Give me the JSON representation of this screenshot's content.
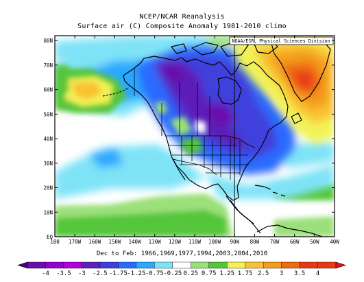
{
  "header": {
    "line1": "NCEP/NCAR Reanalysis",
    "line2": "Surface air (C) Composite Anomaly 1981-2010 climo"
  },
  "credit": "NOAA/ESRL Physical Sciences Division",
  "map": {
    "projection": "equirectangular",
    "lon_range": [
      -180,
      -40
    ],
    "lat_range": [
      0,
      82
    ],
    "lat_labels": [
      "80N",
      "70N",
      "60N",
      "50N",
      "40N",
      "30N",
      "20N",
      "10N",
      "EQ"
    ],
    "lon_labels": [
      "180",
      "170W",
      "160W",
      "150W",
      "140W",
      "130W",
      "120W",
      "110W",
      "100W",
      "90W",
      "80W",
      "70W",
      "60W",
      "50W",
      "40W"
    ],
    "variable": "Surface air temperature anomaly",
    "units": "C",
    "features": [
      "North America coastlines",
      "US state borders",
      "Canadian provinces",
      "Alaska",
      "Greenland",
      "Central America",
      "Caribbean"
    ]
  },
  "footer": {
    "period": "Dec to Feb: 1966,1969,1977,1994,2003,2004,2010"
  },
  "colorbar": {
    "labels": [
      "-4",
      "-3.5",
      "-3",
      "-2.5",
      "-1.75",
      "-1.25",
      "-0.75",
      "-0.25",
      "0.25",
      "0.75",
      "1.25",
      "1.75",
      "2.5",
      "3",
      "3.5",
      "4"
    ],
    "colors": [
      "#4b0082",
      "#6a0dad",
      "#9400d3",
      "#b000e0",
      "#5d1fb8",
      "#3f3fdc",
      "#2a6bff",
      "#29a9ff",
      "#7fe3f7",
      "#ffffff",
      "#9be07a",
      "#54c63a",
      "#f2f256",
      "#f9c230",
      "#f39c1d",
      "#f06a12",
      "#e83a12",
      "#e8101a"
    ],
    "colors_note": "blue/purple = cold anomaly, green/yellow/red = warm anomaly"
  }
}
